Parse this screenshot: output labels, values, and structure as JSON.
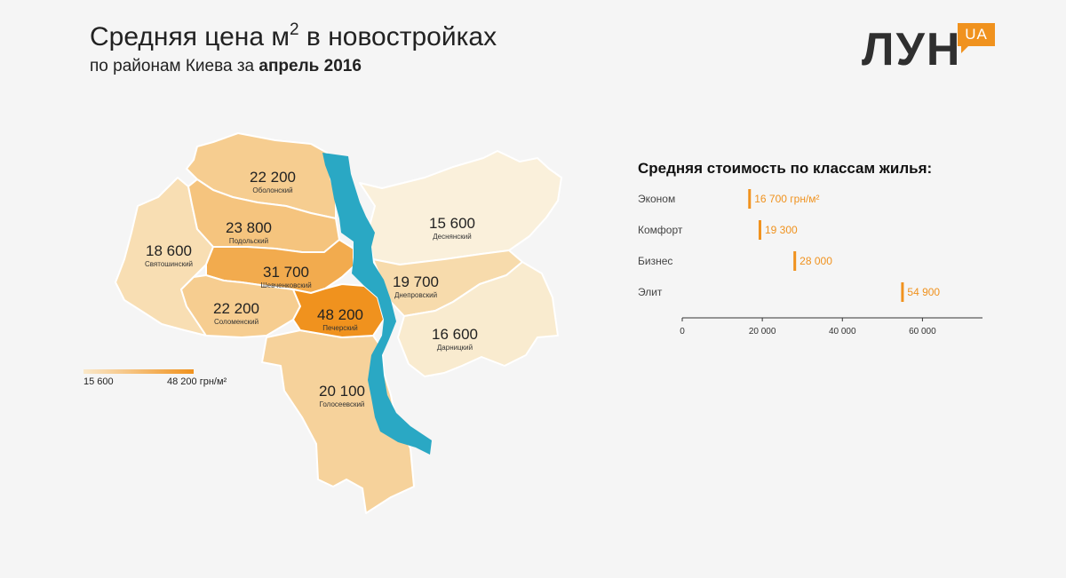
{
  "header": {
    "title_main": "Средняя цена м",
    "title_sup": "2",
    "title_tail": " в новостройках",
    "subtitle_prefix": "по районам Киева за ",
    "subtitle_bold": "апрель 2016"
  },
  "logo": {
    "text": "ЛУН",
    "badge": "UA"
  },
  "districts": [
    {
      "name": "Оболонский",
      "value": "22 200",
      "price": 22200,
      "color": "#f6cd90"
    },
    {
      "name": "Подольский",
      "value": "23 800",
      "price": 23800,
      "color": "#f5c47e"
    },
    {
      "name": "Святошинский",
      "value": "18 600",
      "price": 18600,
      "color": "#f8deb3"
    },
    {
      "name": "Шевченковский",
      "value": "31 700",
      "price": 31700,
      "color": "#f2ab4e"
    },
    {
      "name": "Соломенский",
      "value": "22 200",
      "price": 22200,
      "color": "#f6cd90"
    },
    {
      "name": "Печерский",
      "value": "48 200",
      "price": 48200,
      "color": "#f0921e"
    },
    {
      "name": "Деснянский",
      "value": "15 600",
      "price": 15600,
      "color": "#faf0db"
    },
    {
      "name": "Днепровский",
      "value": "19 700",
      "price": 19700,
      "color": "#f7dbac"
    },
    {
      "name": "Дарницкий",
      "value": "16 600",
      "price": 16600,
      "color": "#f9ebcf"
    },
    {
      "name": "Голосеевский",
      "value": "20 100",
      "price": 20100,
      "color": "#f6d29b"
    }
  ],
  "legend": {
    "min_label": "15 600",
    "max_label": "48 200 грн/м²",
    "min_color": "#fae8ca",
    "max_color": "#f0921e"
  },
  "river_color": "#2aa8c4",
  "chart_data": {
    "type": "bar",
    "title": "Средняя стоимость по классам жилья:",
    "categories": [
      "Эконом",
      "Комфорт",
      "Бизнес",
      "Элит"
    ],
    "values": [
      16700,
      19300,
      28000,
      54900
    ],
    "value_labels": [
      "16 700 грн/м²",
      "19 300",
      "28 000",
      "54 900"
    ],
    "xlim": [
      0,
      75000
    ],
    "ticks": [
      0,
      20000,
      40000,
      60000
    ],
    "tick_labels": [
      "0",
      "20 000",
      "40 000",
      "60 000"
    ],
    "bar_color": "#f0921e",
    "label_color": "#f0921e"
  }
}
